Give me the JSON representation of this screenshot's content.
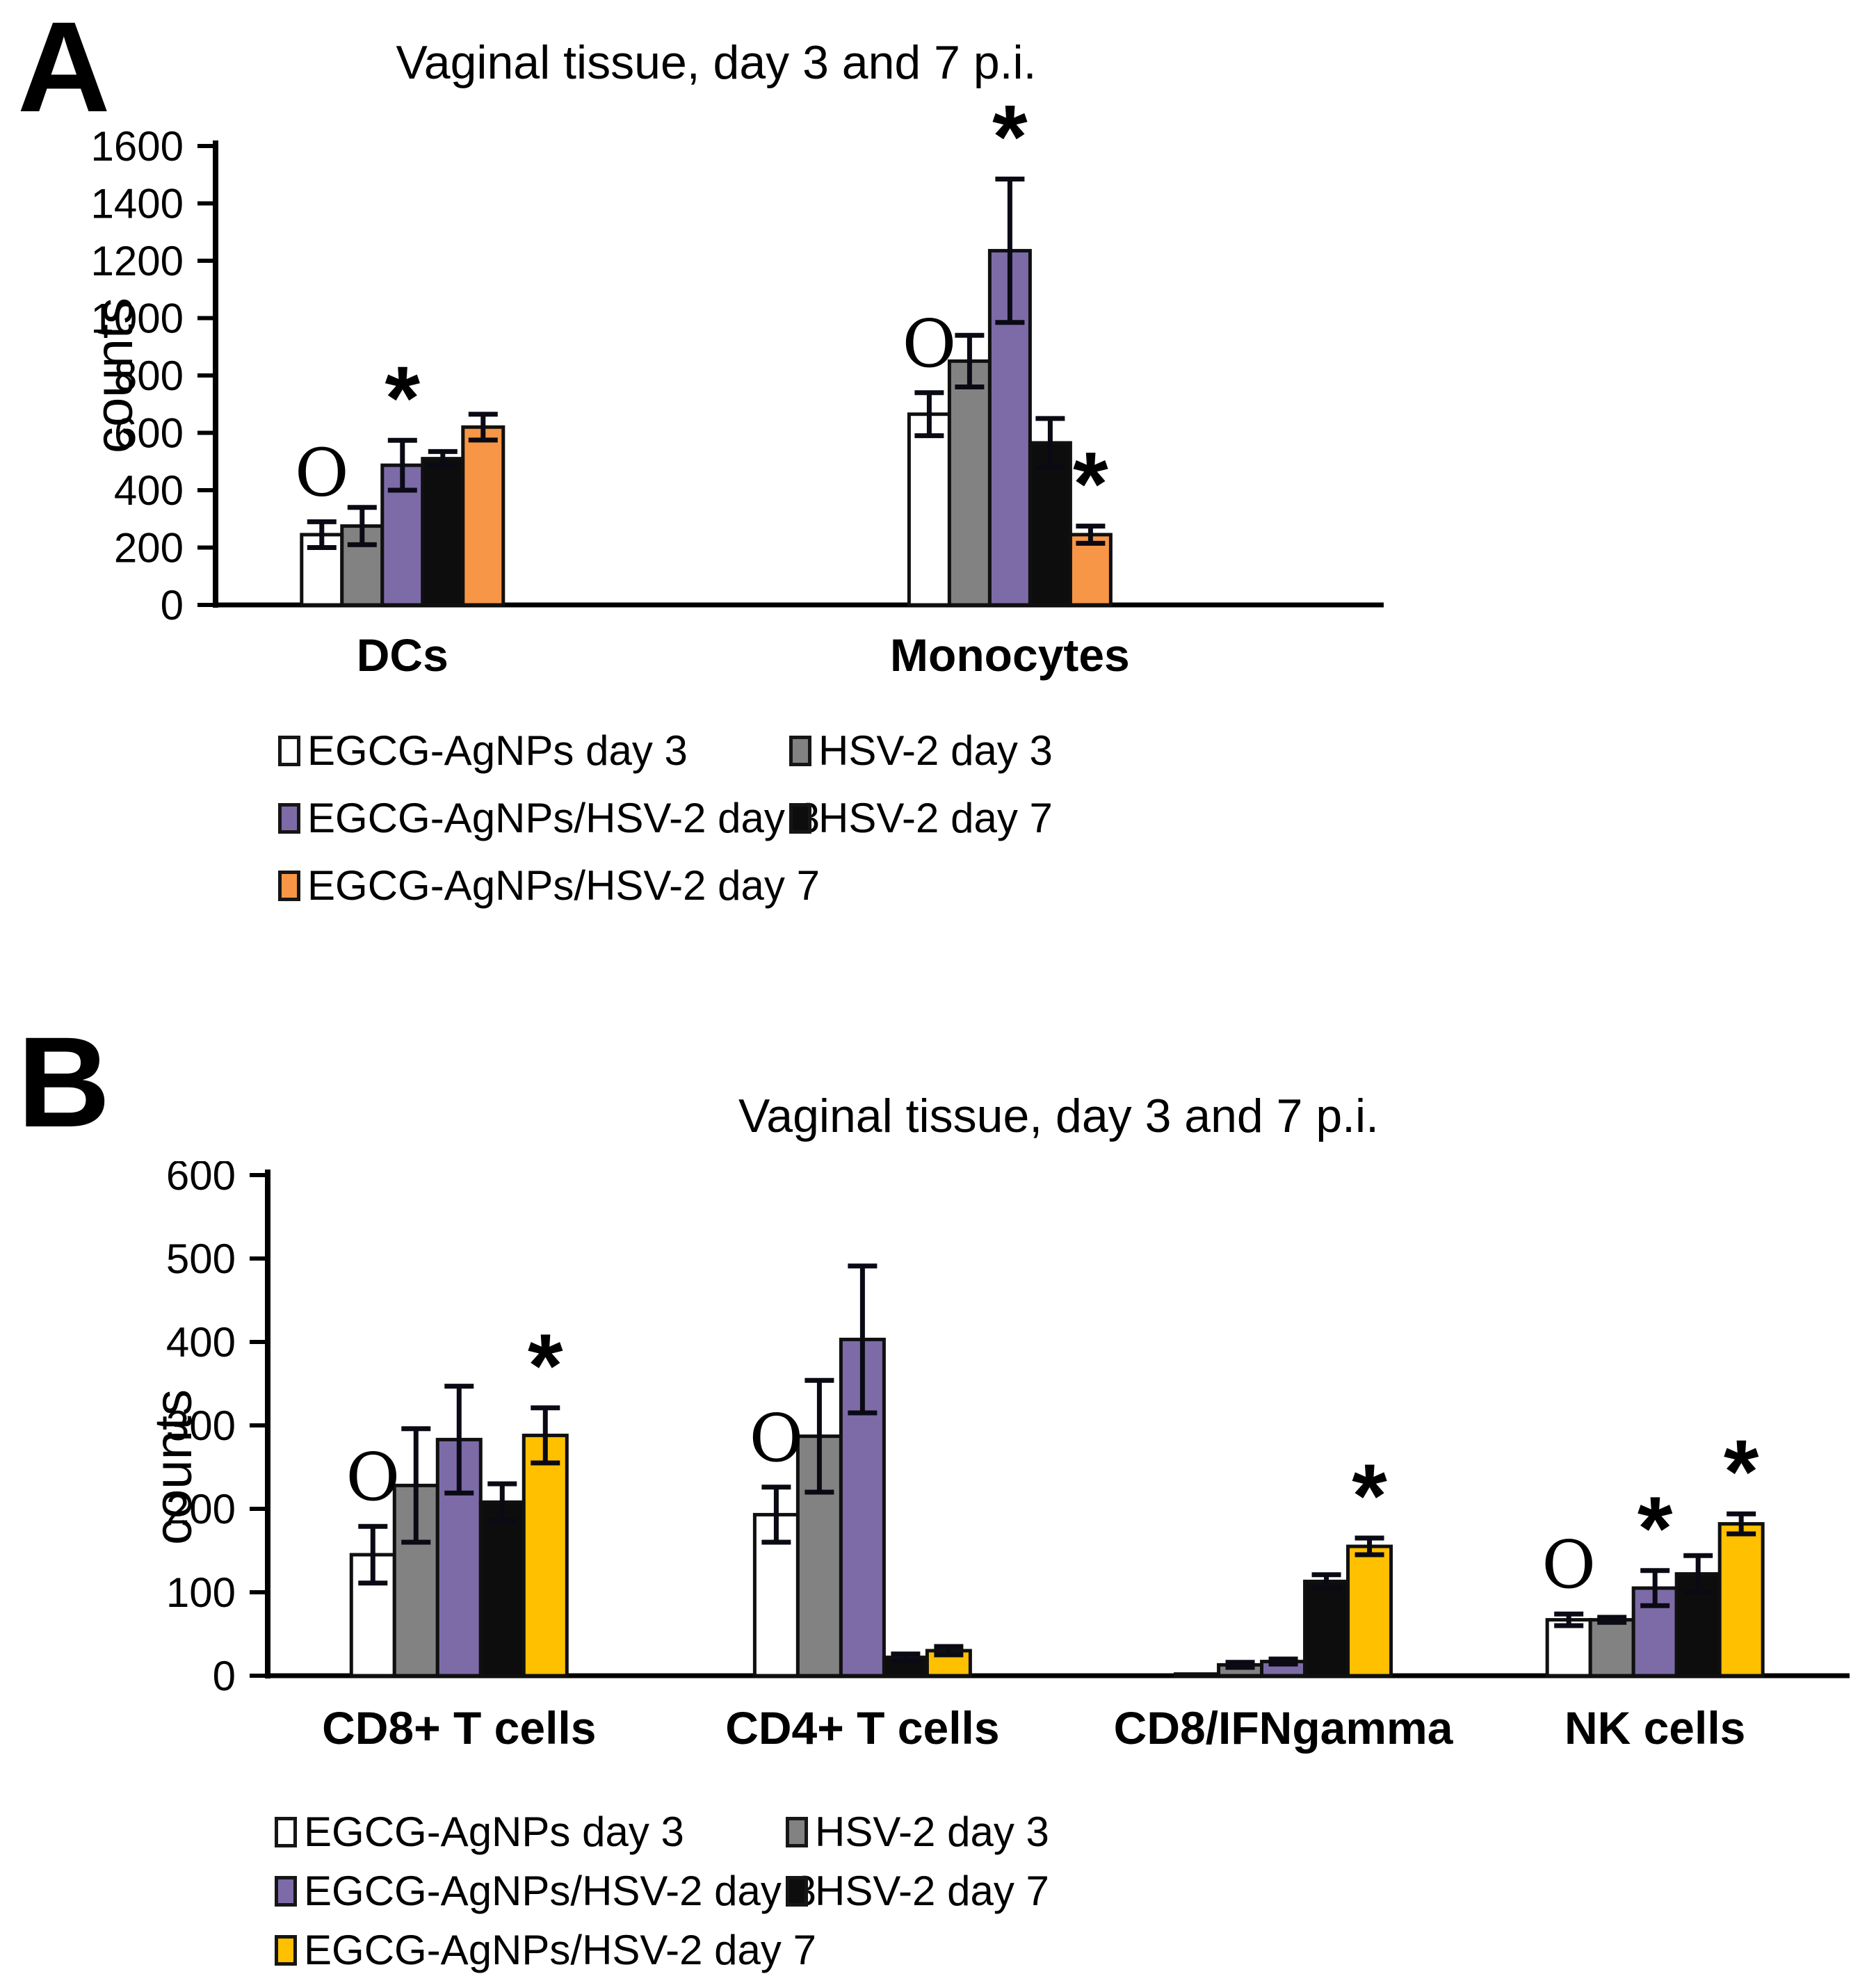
{
  "figure": {
    "panels": [
      {
        "label": "A"
      },
      {
        "label": "B"
      }
    ]
  },
  "chart_data": [
    {
      "type": "bar",
      "panel": "A",
      "title": "Vaginal tissue, day 3 and 7 p.i.",
      "xlabel": "",
      "ylabel": "counts",
      "ylim": [
        0,
        1600
      ],
      "ytick_step": 200,
      "grid": false,
      "legend_position": "bottom",
      "error_bars": true,
      "categories": [
        "DCs",
        "Monocytes"
      ],
      "series": [
        {
          "name": "EGCG-AgNPs day 3",
          "color": "#FFFFFF",
          "values": [
            245,
            665
          ],
          "errors": [
            45,
            75
          ]
        },
        {
          "name": "HSV-2 day 3",
          "color": "#828282",
          "values": [
            275,
            850
          ],
          "errors": [
            65,
            90
          ]
        },
        {
          "name": "EGCG-AgNPs/HSV-2 day 3",
          "color": "#7D6BA8",
          "values": [
            487,
            1235
          ],
          "errors": [
            87,
            250
          ]
        },
        {
          "name": "HSV-2 day 7",
          "color": "#0D0D0D",
          "values": [
            510,
            565
          ],
          "errors": [
            25,
            85
          ]
        },
        {
          "name": "EGCG-AgNPs/HSV-2 day 7",
          "color": "#F79646",
          "values": [
            620,
            245
          ],
          "errors": [
            45,
            30
          ]
        }
      ],
      "annotations": [
        {
          "category": "DCs",
          "series_index": 0,
          "symbol": "O"
        },
        {
          "category": "DCs",
          "series_index": 2,
          "symbol": "*"
        },
        {
          "category": "Monocytes",
          "series_index": 0,
          "symbol": "O"
        },
        {
          "category": "Monocytes",
          "series_index": 2,
          "symbol": "*"
        },
        {
          "category": "Monocytes",
          "series_index": 4,
          "symbol": "*"
        }
      ]
    },
    {
      "type": "bar",
      "panel": "B",
      "title": "Vaginal tissue, day 3 and 7 p.i.",
      "xlabel": "",
      "ylabel": "counts",
      "ylim": [
        0,
        600
      ],
      "ytick_step": 100,
      "grid": false,
      "legend_position": "bottom",
      "error_bars": true,
      "categories": [
        "CD8+ T cells",
        "CD4+ T cells",
        "CD8/IFNgamma",
        "NK cells"
      ],
      "series": [
        {
          "name": "EGCG-AgNPs day 3",
          "color": "#FFFFFF",
          "values": [
            145,
            193,
            2,
            67
          ],
          "errors": [
            34,
            33,
            0,
            7
          ]
        },
        {
          "name": "HSV-2 day 3",
          "color": "#828282",
          "values": [
            228,
            287,
            13,
            67
          ],
          "errors": [
            68,
            67,
            3,
            3
          ]
        },
        {
          "name": "EGCG-AgNPs/HSV-2 day 3",
          "color": "#7D6BA8",
          "values": [
            283,
            403,
            17,
            105
          ],
          "errors": [
            64,
            88,
            3,
            21
          ]
        },
        {
          "name": "HSV-2 day 7",
          "color": "#0D0D0D",
          "values": [
            208,
            22,
            113,
            122
          ],
          "errors": [
            22,
            4,
            8,
            22
          ]
        },
        {
          "name": "EGCG-AgNPs/HSV-2 day 7",
          "color": "#FFC000",
          "values": [
            288,
            30,
            155,
            182
          ],
          "errors": [
            33,
            5,
            10,
            12
          ]
        }
      ],
      "annotations": [
        {
          "category": "CD8+ T cells",
          "series_index": 0,
          "symbol": "O"
        },
        {
          "category": "CD8+ T cells",
          "series_index": 4,
          "symbol": "*"
        },
        {
          "category": "CD4+ T cells",
          "series_index": 0,
          "symbol": "O"
        },
        {
          "category": "CD8/IFNgamma",
          "series_index": 4,
          "symbol": "*"
        },
        {
          "category": "NK cells",
          "series_index": 0,
          "symbol": "O"
        },
        {
          "category": "NK cells",
          "series_index": 2,
          "symbol": "*"
        },
        {
          "category": "NK cells",
          "series_index": 4,
          "symbol": "*"
        }
      ]
    }
  ]
}
